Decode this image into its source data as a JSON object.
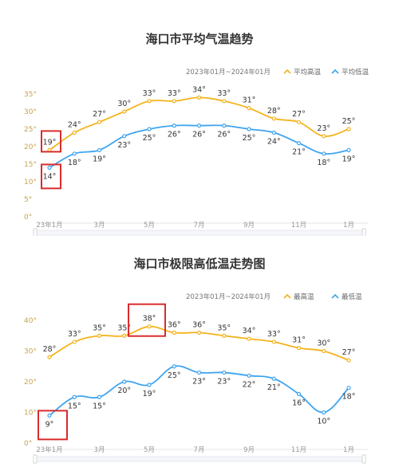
{
  "chart_data": [
    {
      "type": "line",
      "title": "海口市平均气温趋势",
      "date_range": "2023年01月~2024年01月",
      "x": [
        "1",
        "2",
        "3",
        "4",
        "5",
        "6",
        "7",
        "8",
        "9",
        "10",
        "11",
        "12",
        "13"
      ],
      "xtick_labels": [
        {
          "at": 0,
          "text": "23年1月"
        },
        {
          "at": 2,
          "text": "3月"
        },
        {
          "at": 4,
          "text": "5月"
        },
        {
          "at": 6,
          "text": "7月"
        },
        {
          "at": 8,
          "text": "9月"
        },
        {
          "at": 10,
          "text": "11月"
        },
        {
          "at": 12,
          "text": "1月"
        }
      ],
      "yticks": [
        "0°",
        "5°",
        "10°",
        "15°",
        "20°",
        "25°",
        "30°",
        "35°"
      ],
      "ylim": [
        0,
        35
      ],
      "series": [
        {
          "name": "平均高温",
          "color": "#f5b31b",
          "values": [
            19,
            24,
            27,
            30,
            33,
            33,
            34,
            33,
            31,
            28,
            27,
            23,
            25
          ]
        },
        {
          "name": "平均低温",
          "color": "#3ea4f0",
          "values": [
            14,
            18,
            19,
            23,
            25,
            26,
            26,
            26,
            25,
            24,
            21,
            18,
            19
          ]
        }
      ],
      "highlight_boxes": [
        {
          "series": 0,
          "index": 0
        },
        {
          "series": 1,
          "index": 0
        }
      ],
      "highlight_color": "#d92b2b"
    },
    {
      "type": "line",
      "title": "海口市极限高低温走势图",
      "date_range": "2023年01月~2024年01月",
      "x": [
        "1",
        "2",
        "3",
        "4",
        "5",
        "6",
        "7",
        "8",
        "9",
        "10",
        "11",
        "12",
        "13"
      ],
      "xtick_labels": [
        {
          "at": 0,
          "text": "23年1月"
        },
        {
          "at": 2,
          "text": "3月"
        },
        {
          "at": 4,
          "text": "5月"
        },
        {
          "at": 6,
          "text": "7月"
        },
        {
          "at": 8,
          "text": "9月"
        },
        {
          "at": 10,
          "text": "11月"
        },
        {
          "at": 12,
          "text": "1月"
        }
      ],
      "yticks": [
        "0°",
        "10°",
        "20°",
        "30°",
        "40°"
      ],
      "ylim": [
        0,
        40
      ],
      "series": [
        {
          "name": "最高温",
          "color": "#f5b31b",
          "values": [
            28,
            33,
            35,
            35,
            38,
            36,
            36,
            35,
            34,
            33,
            31,
            30,
            27
          ]
        },
        {
          "name": "最低温",
          "color": "#3ea4f0",
          "values": [
            9,
            15,
            15,
            20,
            19,
            25,
            23,
            23,
            22,
            21,
            16,
            10,
            18
          ]
        }
      ],
      "highlight_boxes": [
        {
          "series": 0,
          "index": 4
        },
        {
          "series": 1,
          "index": 0
        }
      ],
      "highlight_color": "#d92b2b"
    }
  ]
}
